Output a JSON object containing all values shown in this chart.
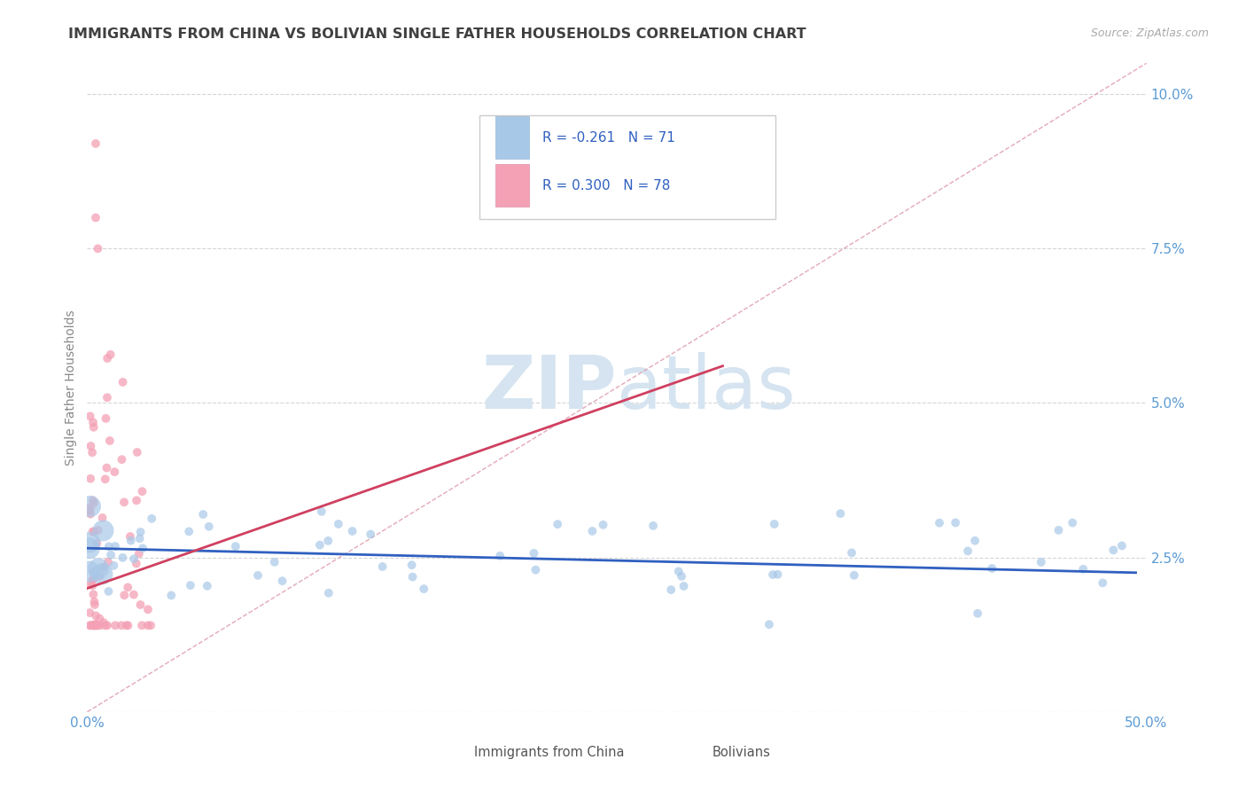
{
  "title": "IMMIGRANTS FROM CHINA VS BOLIVIAN SINGLE FATHER HOUSEHOLDS CORRELATION CHART",
  "source": "Source: ZipAtlas.com",
  "ylabel": "Single Father Households",
  "legend_labels": [
    "Immigrants from China",
    "Bolivians"
  ],
  "xlim": [
    0.0,
    0.5
  ],
  "ylim": [
    0.0,
    0.105
  ],
  "yticks": [
    0.0,
    0.025,
    0.05,
    0.075,
    0.1
  ],
  "ytick_labels": [
    "",
    "2.5%",
    "5.0%",
    "7.5%",
    "10.0%"
  ],
  "xticks": [
    0.0,
    0.1,
    0.2,
    0.3,
    0.4,
    0.5
  ],
  "xtick_labels": [
    "0.0%",
    "",
    "",
    "",
    "",
    "50.0%"
  ],
  "china_color": "#a8c8e8",
  "bolivia_color": "#f4a0b5",
  "china_line_color": "#3060c0",
  "bolivia_line_color": "#d04060",
  "diag_color": "#e0a0b0",
  "background_color": "#ffffff",
  "grid_color": "#cccccc",
  "title_color": "#404040",
  "axis_color": "#5b9bd5",
  "watermark_color": "#d5e4f0",
  "china_intercept": 0.0265,
  "china_slope": -0.008,
  "bolivia_intercept": 0.02,
  "bolivia_slope": 0.12
}
